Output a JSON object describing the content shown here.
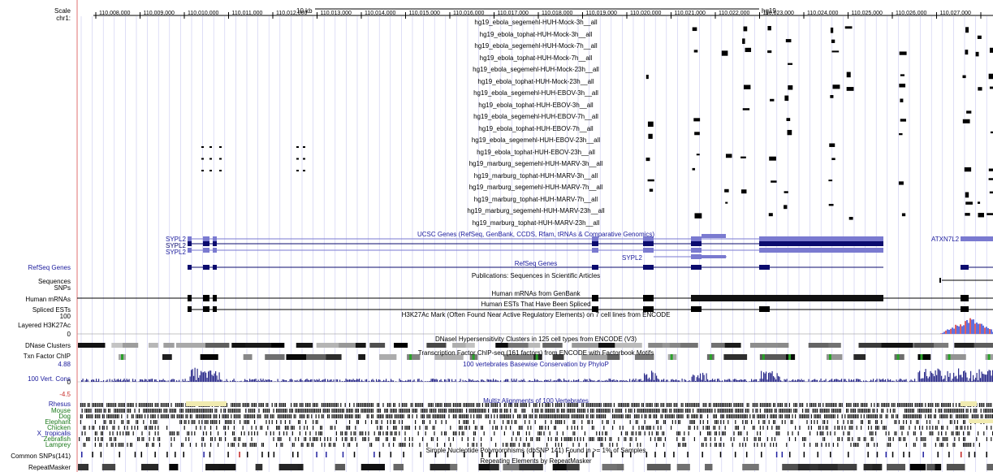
{
  "ruler": {
    "scale_label": "Scale",
    "chrom_label": "chr1:",
    "scale_bar": "10 kb",
    "assembly": "hg19",
    "positions": [
      "110,008,000",
      "110,009,000",
      "110,010,000",
      "110,011,000",
      "110,012,000",
      "110,013,000",
      "110,014,000",
      "110,015,000",
      "110,016,000",
      "110,017,000",
      "110,018,000",
      "110,019,000",
      "110,020,000",
      "110,021,000",
      "110,022,000",
      "110,023,000",
      "110,024,000",
      "110,025,000",
      "110,026,000",
      "110,027,000"
    ]
  },
  "custom_tracks": [
    "hg19_ebola_segemehl-HUH-Mock-3h__all",
    "hg19_ebola_tophat-HUH-Mock-3h__all",
    "hg19_ebola_segemehl-HUH-Mock-7h__all",
    "hg19_ebola_tophat-HUH-Mock-7h__all",
    "hg19_ebola_segemehl-HUH-Mock-23h__all",
    "hg19_ebola_tophat-HUH-Mock-23h__all",
    "hg19_ebola_segemehl-HUH-EBOV-3h__all",
    "hg19_ebola_tophat-HUH-EBOV-3h__all",
    "hg19_ebola_segemehl-HUH-EBOV-7h__all",
    "hg19_ebola_tophat-HUH-EBOV-7h__all",
    "hg19_ebola_segemehl-HUH-EBOV-23h__all",
    "hg19_ebola_tophat-HUH-EBOV-23h__all",
    "hg19_marburg_segemehl-HUH-MARV-3h__all",
    "hg19_marburg_tophat-HUH-MARV-3h__all",
    "hg19_marburg_segemehl-HUH-MARV-7h__all",
    "hg19_marburg_tophat-HUH-MARV-7h__all",
    "hg19_marburg_segemehl-HUH-MARV-23h__all",
    "hg19_marburg_tophat-HUH-MARV-23h__all"
  ],
  "genes": {
    "ucsc_title": "UCSC Genes (RefSeq, GenBank, CCDS, Rfam, tRNAs & Comparative Genomics)",
    "names": [
      "SYPL2",
      "SYPL2",
      "SYPL2",
      "SYPL2",
      "ATXN7L2"
    ],
    "refseq_title": "RefSeq Genes",
    "pubs_title": "Publications: Sequences in Scientific Articles",
    "mrna_title": "Human mRNAs from GenBank",
    "est_title": "Human ESTs That Have Been Spliced",
    "h3k27_title": "H3K27Ac Mark (Often Found Near Active Regulatory Elements) on 7 cell lines from ENCODE",
    "dnase_title": "DNaseI Hypersensitivity Clusters in 125 cell types from ENCODE (V3)",
    "txn_title": "Transcription Factor ChIP-seq (161 factors) from ENCODE with Factorbook Motifs",
    "cons_title": "100 vertebrates Basewise Conservation by PhyloP",
    "multiz_title": "Multiz Alignments of 100 Vertebrates",
    "snp_title": "Simple Nucleotide Polymorphisms (dbSNP 141) Found in >= 1% of Samples",
    "rmsk_title": "Repeating Elements by RepeatMasker"
  },
  "left_labels": {
    "refseq": "RefSeq Genes",
    "sequences": "Sequences",
    "snps": "SNPs",
    "mrnas": "Human mRNAs",
    "ests": "Spliced ESTs",
    "h3k27_max": "100",
    "h3k27": "Layered H3K27Ac",
    "h3k27_min": "0",
    "dnase": "DNase Clusters",
    "txn": "Txn Factor ChIP",
    "cons_max": "4.88",
    "cons": "100 Vert. Cons",
    "cons_zero": "0",
    "cons_min": "-4.5",
    "species": [
      "Rhesus",
      "Mouse",
      "Dog",
      "Elephant",
      "Chicken",
      "X_tropicalis",
      "Zebrafish",
      "Lamprey"
    ],
    "common_snps": "Common SNPs(141)",
    "repeatmasker": "RepeatMasker"
  },
  "colors": {
    "gene_dark": "#0b0b6e",
    "gene_light": "#7a7ad0",
    "label_blue": "#1a1a9c",
    "label_green": "#1c7a1c",
    "cons_blue": "#2a2a8a",
    "grid": "#c8c8f0",
    "divider": "#e07070"
  }
}
